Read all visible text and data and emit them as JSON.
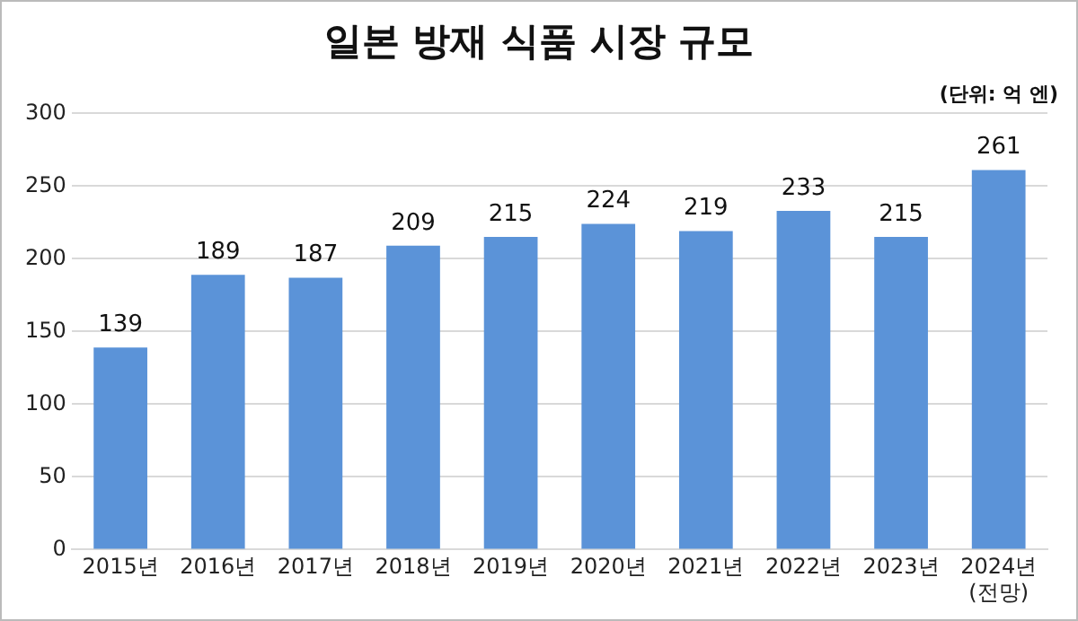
{
  "chart_data": {
    "type": "bar",
    "title": "일본 방재 식품 시장 규모",
    "annotations": [
      "(단위: 억 엔)"
    ],
    "categories": [
      "2015년",
      "2016년",
      "2017년",
      "2018년",
      "2019년",
      "2020년",
      "2021년",
      "2022년",
      "2023년",
      "2024년\n(전망)"
    ],
    "values": [
      139,
      189,
      187,
      209,
      215,
      224,
      219,
      233,
      215,
      261
    ],
    "color": "#5b93d8",
    "ylim": [
      0,
      300
    ],
    "yticks": [
      0,
      50,
      100,
      150,
      200,
      250,
      300
    ],
    "grid": "y",
    "data_labels": true
  }
}
